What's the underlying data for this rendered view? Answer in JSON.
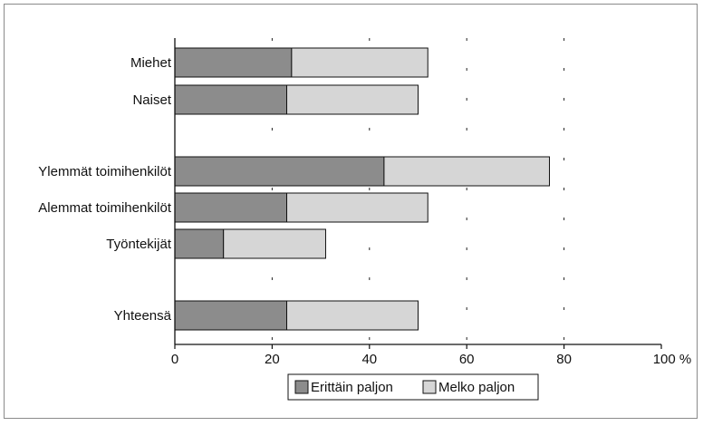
{
  "chart_data": {
    "type": "bar",
    "orientation": "horizontal",
    "stacked": true,
    "categories": [
      "Miehet",
      "Naiset",
      "Ylemmät toimihenkilöt",
      "Alemmat toimihenkilöt",
      "Työntekijät",
      "Yhteensä"
    ],
    "series": [
      {
        "name": "Erittäin paljon",
        "values": [
          24,
          23,
          43,
          23,
          10,
          23
        ],
        "color": "#8c8c8c"
      },
      {
        "name": "Melko paljon",
        "values": [
          28,
          27,
          34,
          29,
          21,
          27
        ],
        "color": "#d6d6d6"
      }
    ],
    "xlim": [
      0,
      100
    ],
    "x_ticks": [
      "0",
      "20",
      "40",
      "60",
      "80",
      "100 %"
    ],
    "grid": "dashed vertical",
    "legend_position": "bottom-center"
  }
}
